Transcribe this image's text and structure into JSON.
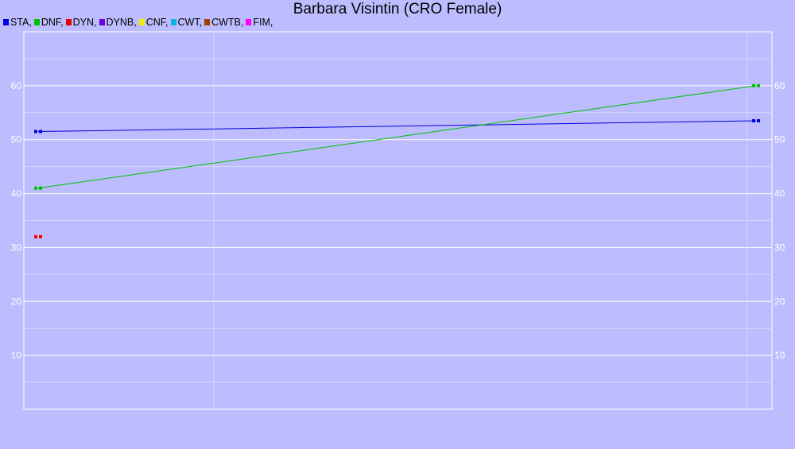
{
  "chart_data": {
    "type": "line",
    "title": "Barbara Visintin (CRO Female)",
    "xlabel": "",
    "ylabel": "",
    "ylim": [
      0,
      70
    ],
    "yticks": [
      10,
      20,
      30,
      40,
      50,
      60
    ],
    "grid": true,
    "legend_position": "top-left",
    "series": [
      {
        "name": "STA,",
        "color": "#0000dd",
        "points": [
          [
            0,
            51.5
          ],
          [
            1,
            53.5
          ]
        ]
      },
      {
        "name": "DNF,",
        "color": "#00c000",
        "points": [
          [
            0,
            41
          ],
          [
            1,
            60
          ]
        ]
      },
      {
        "name": "DYN,",
        "color": "#ee0000",
        "points": [
          [
            0,
            32
          ]
        ]
      },
      {
        "name": "DYNB,",
        "color": "#6a00e8",
        "points": []
      },
      {
        "name": "CNF,",
        "color": "#eeee00",
        "points": []
      },
      {
        "name": "CWT,",
        "color": "#00b8e0",
        "points": []
      },
      {
        "name": "CWTB,",
        "color": "#a04000",
        "points": []
      },
      {
        "name": "FIM,",
        "color": "#ff00ff",
        "points": []
      }
    ]
  }
}
